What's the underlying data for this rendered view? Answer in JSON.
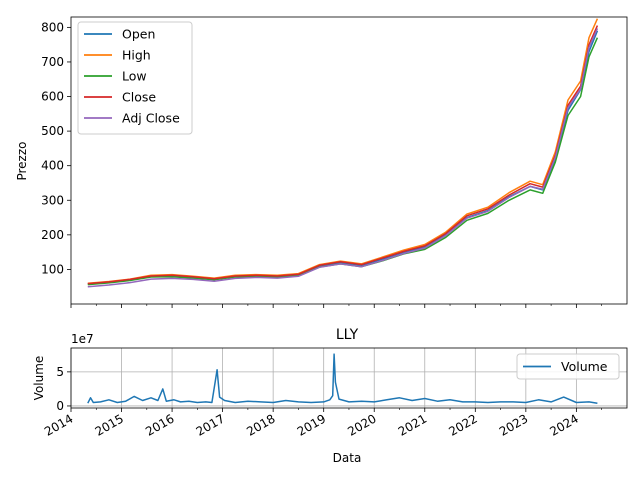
{
  "chart_data": [
    {
      "type": "line",
      "title": "",
      "xlabel": "",
      "ylabel": "Prezzo",
      "ylim": [
        0,
        830
      ],
      "yticks": [
        100,
        200,
        300,
        400,
        500,
        600,
        700,
        800
      ],
      "xlim": [
        "2014-01-01",
        "2024-12-31"
      ],
      "grid": false,
      "legend": "upper left",
      "x": [
        "2014-05",
        "2014-10",
        "2015-03",
        "2015-08",
        "2016-01",
        "2016-06",
        "2016-11",
        "2017-04",
        "2017-09",
        "2018-02",
        "2018-07",
        "2018-12",
        "2019-05",
        "2019-10",
        "2020-03",
        "2020-08",
        "2021-01",
        "2021-06",
        "2021-11",
        "2022-04",
        "2022-09",
        "2023-02",
        "2023-05",
        "2023-08",
        "2023-11",
        "2024-02",
        "2024-04",
        "2024-06"
      ],
      "series": [
        {
          "name": "Open",
          "color": "#1f77b4",
          "values": [
            58,
            63,
            70,
            80,
            82,
            78,
            72,
            80,
            82,
            80,
            85,
            110,
            120,
            112,
            130,
            150,
            165,
            200,
            250,
            270,
            310,
            340,
            330,
            420,
            560,
            620,
            730,
            790
          ]
        },
        {
          "name": "High",
          "color": "#ff7f0e",
          "values": [
            60,
            65,
            72,
            83,
            85,
            80,
            75,
            83,
            85,
            83,
            88,
            114,
            124,
            116,
            136,
            156,
            172,
            208,
            260,
            280,
            322,
            355,
            345,
            440,
            590,
            645,
            770,
            825
          ]
        },
        {
          "name": "Low",
          "color": "#2ca02c",
          "values": [
            56,
            61,
            68,
            78,
            79,
            75,
            70,
            78,
            80,
            77,
            82,
            107,
            116,
            108,
            125,
            145,
            158,
            193,
            242,
            262,
            300,
            330,
            320,
            410,
            545,
            600,
            715,
            770
          ]
        },
        {
          "name": "Close",
          "color": "#d62728",
          "values": [
            59,
            64,
            71,
            81,
            83,
            79,
            73,
            81,
            83,
            81,
            86,
            112,
            122,
            114,
            133,
            152,
            168,
            204,
            255,
            275,
            315,
            348,
            338,
            430,
            575,
            630,
            750,
            805
          ]
        },
        {
          "name": "Adj Close",
          "color": "#9467bd",
          "values": [
            50,
            55,
            62,
            72,
            74,
            71,
            66,
            74,
            77,
            75,
            80,
            106,
            116,
            108,
            126,
            146,
            162,
            198,
            248,
            268,
            308,
            340,
            332,
            424,
            568,
            622,
            742,
            797
          ]
        }
      ]
    },
    {
      "type": "line",
      "title": "LLY",
      "xlabel": "Data",
      "ylabel": "Volume",
      "scale_label": "1e7",
      "ylim": [
        -0.3,
        8.5
      ],
      "yticks": [
        0,
        5
      ],
      "xlim": [
        "2014-01-01",
        "2024-12-31"
      ],
      "xticks": [
        "2014",
        "2015",
        "2016",
        "2017",
        "2018",
        "2019",
        "2020",
        "2021",
        "2022",
        "2023",
        "2024"
      ],
      "grid": true,
      "legend": "upper right",
      "series": [
        {
          "name": "Volume",
          "color": "#1f77b4",
          "points": [
            [
              "2014-05-01",
              0.4
            ],
            [
              "2014-05-20",
              1.2
            ],
            [
              "2014-06-10",
              0.5
            ],
            [
              "2014-08-01",
              0.6
            ],
            [
              "2014-10-01",
              0.9
            ],
            [
              "2014-12-01",
              0.5
            ],
            [
              "2015-02-01",
              0.7
            ],
            [
              "2015-04-01",
              1.4
            ],
            [
              "2015-06-01",
              0.8
            ],
            [
              "2015-08-01",
              1.2
            ],
            [
              "2015-09-20",
              0.8
            ],
            [
              "2015-10-25",
              2.5
            ],
            [
              "2015-11-20",
              0.7
            ],
            [
              "2016-01-15",
              0.9
            ],
            [
              "2016-03-01",
              0.6
            ],
            [
              "2016-05-01",
              0.7
            ],
            [
              "2016-07-01",
              0.5
            ],
            [
              "2016-09-01",
              0.6
            ],
            [
              "2016-10-15",
              0.5
            ],
            [
              "2016-11-22",
              5.3
            ],
            [
              "2016-12-10",
              1.3
            ],
            [
              "2017-01-15",
              0.8
            ],
            [
              "2017-04-01",
              0.5
            ],
            [
              "2017-07-01",
              0.7
            ],
            [
              "2017-10-01",
              0.6
            ],
            [
              "2018-01-01",
              0.5
            ],
            [
              "2018-04-01",
              0.8
            ],
            [
              "2018-07-01",
              0.6
            ],
            [
              "2018-10-01",
              0.5
            ],
            [
              "2019-01-01",
              0.6
            ],
            [
              "2019-02-15",
              0.9
            ],
            [
              "2019-03-05",
              1.5
            ],
            [
              "2019-03-15",
              7.6
            ],
            [
              "2019-03-25",
              3.5
            ],
            [
              "2019-04-20",
              1.0
            ],
            [
              "2019-07-01",
              0.6
            ],
            [
              "2019-10-01",
              0.7
            ],
            [
              "2020-01-01",
              0.6
            ],
            [
              "2020-04-01",
              0.9
            ],
            [
              "2020-07-01",
              1.2
            ],
            [
              "2020-10-01",
              0.8
            ],
            [
              "2021-01-01",
              1.1
            ],
            [
              "2021-04-01",
              0.7
            ],
            [
              "2021-07-01",
              0.9
            ],
            [
              "2021-10-01",
              0.6
            ],
            [
              "2022-01-01",
              0.6
            ],
            [
              "2022-04-01",
              0.5
            ],
            [
              "2022-07-01",
              0.6
            ],
            [
              "2022-10-01",
              0.6
            ],
            [
              "2023-01-01",
              0.5
            ],
            [
              "2023-04-01",
              0.9
            ],
            [
              "2023-07-01",
              0.6
            ],
            [
              "2023-10-01",
              1.3
            ],
            [
              "2024-01-01",
              0.5
            ],
            [
              "2024-04-01",
              0.6
            ],
            [
              "2024-06-01",
              0.4
            ]
          ]
        }
      ]
    }
  ]
}
